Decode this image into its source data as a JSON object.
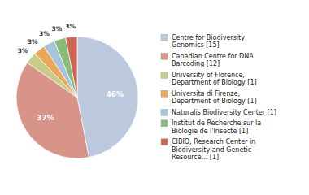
{
  "chart_data": {
    "type": "pie",
    "categories": [
      "Centre for Biodiversity\nGenomics [15]",
      "Canadian Centre for DNA\nBarcoding [12]",
      "University of Florence,\nDepartment of Biology [1]",
      "Universita di Firenze,\nDepartment of Biology [1]",
      "Naturalis Biodiversity Center [1]",
      "Institut de Recherche sur la\nBiologie de l'Insecte [1]",
      "CIBIO, Research Center in\nBiodiversity and Genetic\nResource... [1]"
    ],
    "values": [
      46,
      37,
      3,
      3,
      3,
      3,
      3
    ],
    "value_labels": [
      "46%",
      "37%",
      "3%",
      "3%",
      "3%",
      "3%",
      "3%"
    ],
    "colors": [
      "#bbc8dd",
      "#d9948a",
      "#c8cc88",
      "#e8a855",
      "#a8c4dd",
      "#88bb77",
      "#cc6655"
    ],
    "data_labels": true,
    "legend": "right"
  }
}
